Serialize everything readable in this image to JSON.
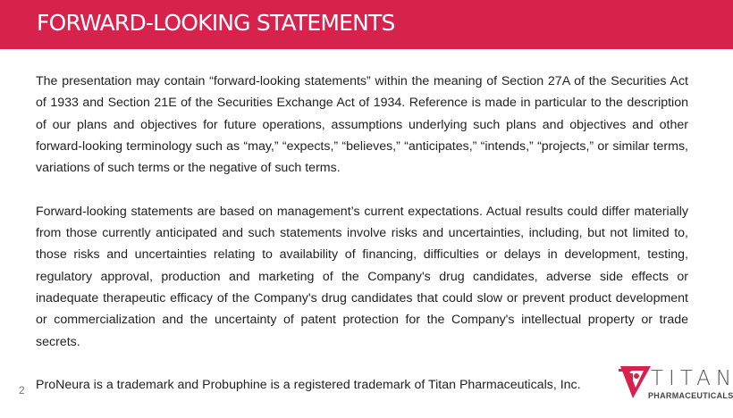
{
  "header": {
    "title": "FORWARD-LOOKING STATEMENTS",
    "color": "#d6224c"
  },
  "paragraphs": [
    "The presentation may contain “forward-looking statements” within the meaning of Section 27A of the Securities Act of 1933 and Section 21E of the Securities Exchange Act of 1934. Reference is made in particular to the description of our plans and objectives for future operations, assumptions underlying such plans and objectives and other forward-looking terminology such as “may,” “expects,” “believes,” “anticipates,” “intends,” “projects,” or similar terms, variations of such terms or the negative of such terms.",
    "Forward-looking statements are based on management’s current expectations. Actual results could differ materially from those currently anticipated and such statements involve risks and uncertainties, including, but not limited to, those risks and uncertainties relating to availability of financing, difficulties or delays in development, testing, regulatory approval, production and marketing of the Company's drug candidates, adverse side effects or inadequate therapeutic efficacy of the Company's drug candidates that could slow or prevent product development or commercialization and the uncertainty of patent protection for the Company's intellectual property or trade secrets.",
    "ProNeura is a trademark and Probuphine is a registered trademark of Titan Pharmaceuticals, Inc."
  ],
  "page_number": "2",
  "logo": {
    "name": "TITAN",
    "subtitle": "PHARMACEUTICALS"
  }
}
